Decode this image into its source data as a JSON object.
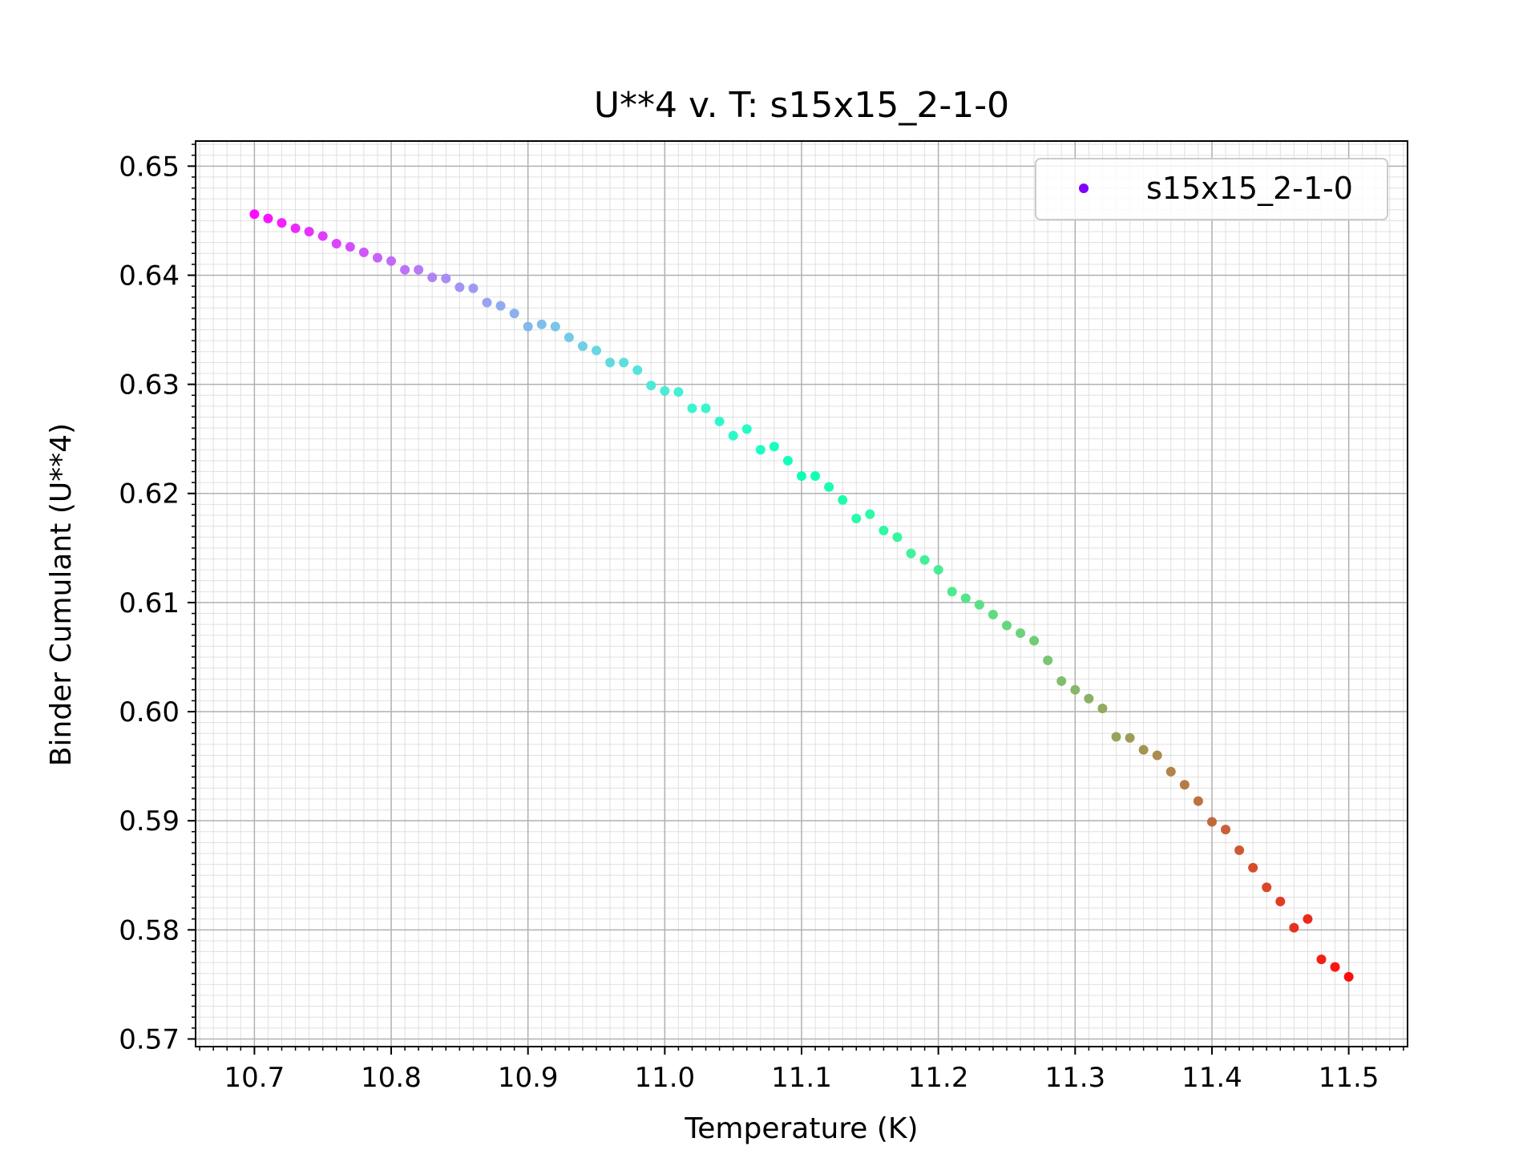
{
  "chart_data": {
    "type": "scatter",
    "title": "U**4 v. T: s15x15_2-1-0",
    "xlabel": "Temperature (K)",
    "ylabel": "Binder Cumulant (U**4)",
    "xlim": [
      10.657,
      11.543
    ],
    "ylim": [
      0.5693,
      0.6523
    ],
    "x_ticks": [
      10.7,
      10.8,
      10.9,
      11.0,
      11.1,
      11.2,
      11.3,
      11.4,
      11.5
    ],
    "x_tick_labels": [
      "10.7",
      "10.8",
      "10.9",
      "11.0",
      "11.1",
      "11.2",
      "11.3",
      "11.4",
      "11.5"
    ],
    "y_ticks": [
      0.57,
      0.58,
      0.59,
      0.6,
      0.61,
      0.62,
      0.63,
      0.64,
      0.65
    ],
    "y_tick_labels": [
      "0.57",
      "0.58",
      "0.59",
      "0.60",
      "0.61",
      "0.62",
      "0.63",
      "0.64",
      "0.65"
    ],
    "grid": true,
    "minor_grid": true,
    "legend_position": "top-right",
    "colormap": "rainbow",
    "series": [
      {
        "name": "s15x15_2-1-0",
        "legend_color": "#8000ff",
        "x": [
          10.7,
          10.71,
          10.72,
          10.73,
          10.74,
          10.75,
          10.76,
          10.77,
          10.78,
          10.79,
          10.8,
          10.81,
          10.82,
          10.83,
          10.84,
          10.85,
          10.86,
          10.87,
          10.88,
          10.89,
          10.9,
          10.91,
          10.92,
          10.93,
          10.94,
          10.95,
          10.96,
          10.97,
          10.98,
          10.99,
          11.0,
          11.01,
          11.02,
          11.03,
          11.04,
          11.05,
          11.06,
          11.07,
          11.08,
          11.09,
          11.1,
          11.11,
          11.12,
          11.13,
          11.14,
          11.15,
          11.16,
          11.17,
          11.18,
          11.19,
          11.2,
          11.21,
          11.22,
          11.23,
          11.24,
          11.25,
          11.26,
          11.27,
          11.28,
          11.29,
          11.3,
          11.31,
          11.32,
          11.33,
          11.34,
          11.35,
          11.36,
          11.37,
          11.38,
          11.39,
          11.4,
          11.41,
          11.42,
          11.43,
          11.44,
          11.45,
          11.46,
          11.47,
          11.48,
          11.49,
          11.5
        ],
        "y": [
          0.6456,
          0.6452,
          0.6448,
          0.6443,
          0.644,
          0.6436,
          0.6429,
          0.6426,
          0.6421,
          0.6416,
          0.6413,
          0.6405,
          0.6405,
          0.6398,
          0.6397,
          0.6389,
          0.6388,
          0.6375,
          0.6372,
          0.6365,
          0.6353,
          0.6355,
          0.6353,
          0.6343,
          0.6335,
          0.6331,
          0.632,
          0.632,
          0.6313,
          0.6299,
          0.6294,
          0.6293,
          0.6278,
          0.6278,
          0.6266,
          0.6253,
          0.6259,
          0.624,
          0.6243,
          0.623,
          0.6216,
          0.6216,
          0.6206,
          0.6194,
          0.6177,
          0.6181,
          0.6166,
          0.616,
          0.6145,
          0.6139,
          0.613,
          0.611,
          0.6104,
          0.6098,
          0.6089,
          0.6079,
          0.6072,
          0.6065,
          0.6047,
          0.6028,
          0.602,
          0.6012,
          0.6003,
          0.5977,
          0.5976,
          0.5965,
          0.596,
          0.5945,
          0.5933,
          0.5918,
          0.5899,
          0.5892,
          0.5873,
          0.5857,
          0.5839,
          0.5826,
          0.5802,
          0.581,
          0.5773,
          0.5766,
          0.5757
        ]
      }
    ]
  }
}
